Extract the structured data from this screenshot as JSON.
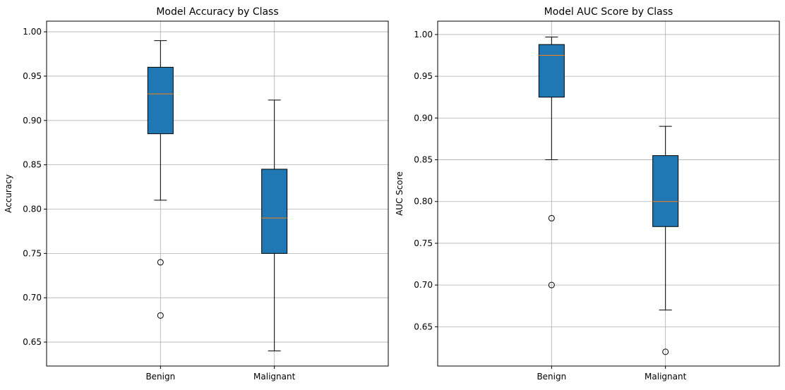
{
  "chart_data": [
    {
      "type": "boxplot",
      "title": "Model Accuracy by Class",
      "xlabel": "",
      "ylabel": "Accuracy",
      "ylim": [
        0.623,
        1.012
      ],
      "yticks": [
        0.65,
        0.7,
        0.75,
        0.8,
        0.85,
        0.9,
        0.95,
        1.0
      ],
      "ytick_labels": [
        "0.65",
        "0.70",
        "0.75",
        "0.80",
        "0.85",
        "0.90",
        "0.95",
        "1.00"
      ],
      "grid": true,
      "box_color": "#1f77b4",
      "median_color": "#ff7f0e",
      "categories": [
        "Benign",
        "Malignant"
      ],
      "boxes": [
        {
          "category": "Benign",
          "whisker_low": 0.81,
          "q1": 0.885,
          "median": 0.93,
          "q3": 0.96,
          "whisker_high": 0.99,
          "outliers": [
            0.74,
            0.68
          ]
        },
        {
          "category": "Malignant",
          "whisker_low": 0.64,
          "q1": 0.75,
          "median": 0.79,
          "q3": 0.845,
          "whisker_high": 0.923,
          "outliers": []
        }
      ]
    },
    {
      "type": "boxplot",
      "title": "Model AUC Score by Class",
      "xlabel": "",
      "ylabel": "AUC Score",
      "ylim": [
        0.603,
        1.016
      ],
      "yticks": [
        0.65,
        0.7,
        0.75,
        0.8,
        0.85,
        0.9,
        0.95,
        1.0
      ],
      "ytick_labels": [
        "0.65",
        "0.70",
        "0.75",
        "0.80",
        "0.85",
        "0.90",
        "0.95",
        "1.00"
      ],
      "grid": true,
      "box_color": "#1f77b4",
      "median_color": "#ff7f0e",
      "categories": [
        "Benign",
        "Malignant"
      ],
      "boxes": [
        {
          "category": "Benign",
          "whisker_low": 0.85,
          "q1": 0.925,
          "median": 0.975,
          "q3": 0.988,
          "whisker_high": 0.997,
          "outliers": [
            0.78,
            0.7
          ]
        },
        {
          "category": "Malignant",
          "whisker_low": 0.67,
          "q1": 0.77,
          "median": 0.8,
          "q3": 0.855,
          "whisker_high": 0.89,
          "outliers": [
            0.62
          ]
        }
      ]
    }
  ]
}
